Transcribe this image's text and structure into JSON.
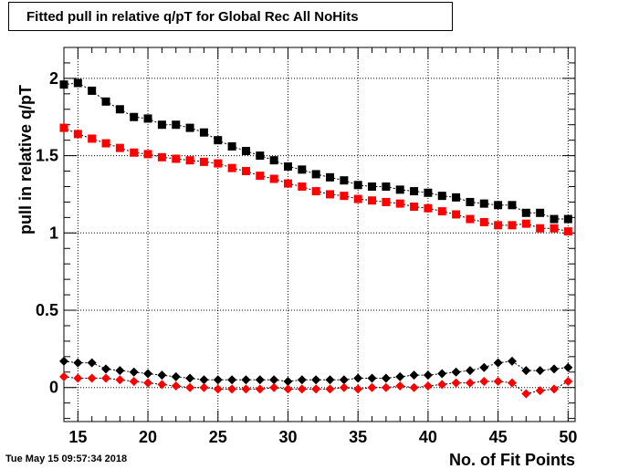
{
  "chart_data": {
    "type": "scatter",
    "title": "Fitted pull in relative q/pT for Global Rec All NoHits",
    "xlabel": "No. of Fit Points",
    "ylabel": "pull in relative q/pT",
    "xlim": [
      14,
      50.5
    ],
    "ylim": [
      -0.22,
      2.2
    ],
    "xticks": [
      15,
      20,
      25,
      30,
      35,
      40,
      45,
      50
    ],
    "yticks": [
      0,
      0.5,
      1,
      1.5,
      2
    ],
    "ytick_labels": [
      "0",
      "0.5",
      "1",
      "1.5",
      "2"
    ],
    "grid": true,
    "x": [
      14,
      15,
      16,
      17,
      18,
      19,
      20,
      21,
      22,
      23,
      24,
      25,
      26,
      27,
      28,
      29,
      30,
      31,
      32,
      33,
      34,
      35,
      36,
      37,
      38,
      39,
      40,
      41,
      42,
      43,
      44,
      45,
      46,
      47,
      48,
      49,
      50
    ],
    "series": [
      {
        "marker": "square",
        "color": "#000000",
        "values": [
          1.96,
          1.97,
          1.92,
          1.85,
          1.8,
          1.75,
          1.74,
          1.7,
          1.7,
          1.68,
          1.65,
          1.6,
          1.56,
          1.53,
          1.5,
          1.47,
          1.43,
          1.41,
          1.38,
          1.36,
          1.34,
          1.31,
          1.3,
          1.3,
          1.28,
          1.27,
          1.26,
          1.24,
          1.23,
          1.2,
          1.19,
          1.18,
          1.18,
          1.13,
          1.13,
          1.09,
          1.09
        ]
      },
      {
        "marker": "square",
        "color": "#ff0000",
        "values": [
          1.68,
          1.64,
          1.61,
          1.58,
          1.55,
          1.52,
          1.51,
          1.49,
          1.48,
          1.47,
          1.46,
          1.45,
          1.42,
          1.4,
          1.37,
          1.35,
          1.32,
          1.3,
          1.27,
          1.25,
          1.24,
          1.22,
          1.21,
          1.2,
          1.19,
          1.17,
          1.16,
          1.14,
          1.12,
          1.09,
          1.07,
          1.05,
          1.05,
          1.06,
          1.03,
          1.03,
          1.01
        ]
      },
      {
        "marker": "diamond",
        "color": "#000000",
        "values": [
          0.17,
          0.16,
          0.16,
          0.12,
          0.11,
          0.1,
          0.09,
          0.08,
          0.07,
          0.06,
          0.05,
          0.05,
          0.05,
          0.05,
          0.05,
          0.05,
          0.04,
          0.05,
          0.05,
          0.05,
          0.05,
          0.06,
          0.06,
          0.06,
          0.07,
          0.08,
          0.08,
          0.09,
          0.1,
          0.11,
          0.13,
          0.16,
          0.17,
          0.11,
          0.11,
          0.12,
          0.13
        ]
      },
      {
        "marker": "diamond",
        "color": "#ff0000",
        "values": [
          0.07,
          0.06,
          0.06,
          0.06,
          0.05,
          0.04,
          0.03,
          0.02,
          0.01,
          0.0,
          0.0,
          -0.01,
          -0.01,
          -0.01,
          -0.01,
          0.0,
          -0.01,
          -0.01,
          -0.01,
          -0.01,
          0.0,
          -0.01,
          0.0,
          0.0,
          0.01,
          0.0,
          0.01,
          0.02,
          0.03,
          0.03,
          0.04,
          0.04,
          0.03,
          -0.04,
          -0.02,
          -0.01,
          0.04
        ]
      }
    ]
  },
  "timestamp": "Tue May 15 09:57:34 2018"
}
